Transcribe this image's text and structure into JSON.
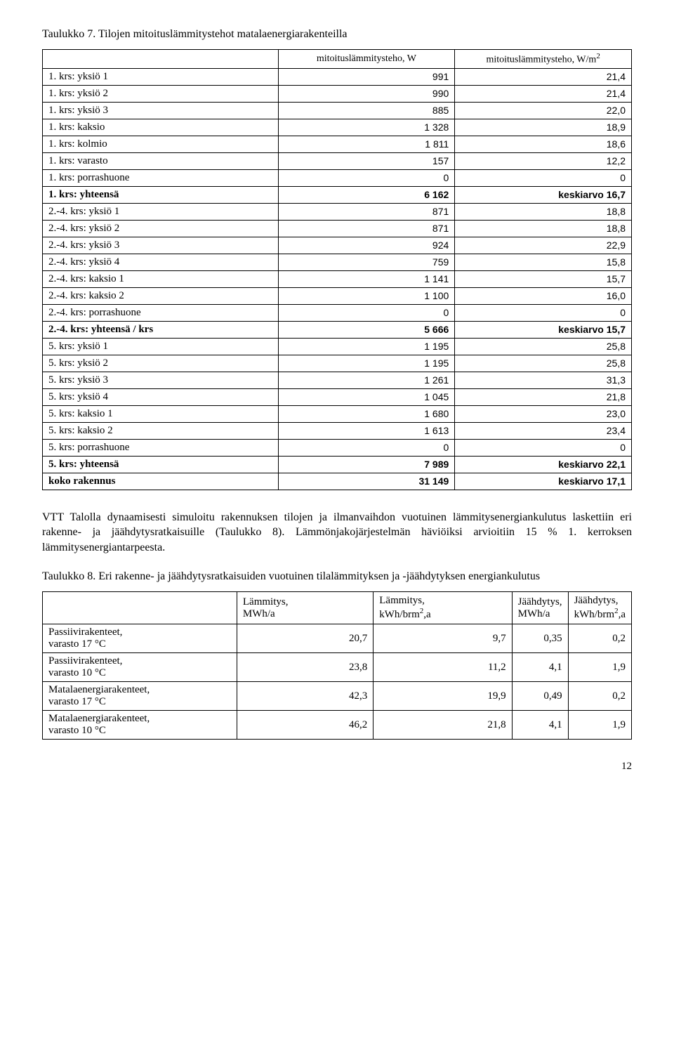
{
  "table7": {
    "caption": "Taulukko 7. Tilojen mitoituslämmitystehot matalaenergiarakenteilla",
    "headers": {
      "blank": "",
      "col1": "mitoituslämmitysteho, W",
      "col2_pre": "mitoituslämmitysteho, W/m",
      "col2_sup": "2"
    },
    "rows": [
      {
        "label": "1. krs: yksiö 1",
        "v1": "991",
        "v2": "21,4",
        "bold": false
      },
      {
        "label": "1. krs: yksiö 2",
        "v1": "990",
        "v2": "21,4",
        "bold": false
      },
      {
        "label": "1. krs: yksiö 3",
        "v1": "885",
        "v2": "22,0",
        "bold": false
      },
      {
        "label": "1. krs: kaksio",
        "v1": "1 328",
        "v2": "18,9",
        "bold": false
      },
      {
        "label": "1. krs: kolmio",
        "v1": "1 811",
        "v2": "18,6",
        "bold": false
      },
      {
        "label": "1. krs: varasto",
        "v1": "157",
        "v2": "12,2",
        "bold": false
      },
      {
        "label": "1. krs: porrashuone",
        "v1": "0",
        "v2": "0",
        "bold": false
      },
      {
        "label": "1. krs: yhteensä",
        "v1": "6 162",
        "v2": "keskiarvo 16,7",
        "bold": true
      },
      {
        "label": "2.-4. krs: yksiö 1",
        "v1": "871",
        "v2": "18,8",
        "bold": false
      },
      {
        "label": "2.-4. krs: yksiö 2",
        "v1": "871",
        "v2": "18,8",
        "bold": false
      },
      {
        "label": "2.-4. krs: yksiö 3",
        "v1": "924",
        "v2": "22,9",
        "bold": false
      },
      {
        "label": "2.-4. krs: yksiö 4",
        "v1": "759",
        "v2": "15,8",
        "bold": false
      },
      {
        "label": "2.-4. krs: kaksio 1",
        "v1": "1 141",
        "v2": "15,7",
        "bold": false
      },
      {
        "label": "2.-4. krs: kaksio 2",
        "v1": "1 100",
        "v2": "16,0",
        "bold": false
      },
      {
        "label": "2.-4. krs: porrashuone",
        "v1": "0",
        "v2": "0",
        "bold": false
      },
      {
        "label": "2.-4. krs: yhteensä / krs",
        "v1": "5 666",
        "v2": "keskiarvo 15,7",
        "bold": true
      },
      {
        "label": "5. krs: yksiö 1",
        "v1": "1 195",
        "v2": "25,8",
        "bold": false
      },
      {
        "label": "5. krs: yksiö 2",
        "v1": "1 195",
        "v2": "25,8",
        "bold": false
      },
      {
        "label": "5. krs: yksiö 3",
        "v1": "1 261",
        "v2": "31,3",
        "bold": false
      },
      {
        "label": "5. krs: yksiö 4",
        "v1": "1 045",
        "v2": "21,8",
        "bold": false
      },
      {
        "label": "5. krs: kaksio 1",
        "v1": "1 680",
        "v2": "23,0",
        "bold": false
      },
      {
        "label": "5. krs: kaksio 2",
        "v1": "1 613",
        "v2": "23,4",
        "bold": false
      },
      {
        "label": "5. krs: porrashuone",
        "v1": "0",
        "v2": "0",
        "bold": false
      },
      {
        "label": "5. krs: yhteensä",
        "v1": "7 989",
        "v2": "keskiarvo 22,1",
        "bold": true
      },
      {
        "label": "koko rakennus",
        "v1": "31 149",
        "v2": "keskiarvo 17,1",
        "bold": true
      }
    ]
  },
  "paragraph1": "VTT Talolla dynaamisesti simuloitu rakennuksen tilojen ja ilmanvaihdon vuotuinen lämmitysenergiankulutus laskettiin eri rakenne- ja jäähdytysratkaisuille (Taulukko 8). Lämmönjakojärjestelmän häviöiksi arvioitiin 15 % 1. kerroksen lämmitysenergiantarpeesta.",
  "table8": {
    "caption": "Taulukko 8. Eri rakenne- ja jäähdytysratkaisuiden vuotuinen tilalämmityksen ja -jäähdytyksen energiankulutus",
    "headers": {
      "blank": "",
      "c1a": "Lämmitys,",
      "c1b": "MWh/a",
      "c2a": "Lämmitys,",
      "c2b_pre": "kWh/brm",
      "c2b_sup": "2",
      "c2b_post": ",a",
      "c3a": "Jäähdytys,",
      "c3b": "MWh/a",
      "c4a": "Jäähdytys,",
      "c4b_pre": "kWh/brm",
      "c4b_sup": "2",
      "c4b_post": ",a"
    },
    "rows": [
      {
        "l1": "Passiivirakenteet,",
        "l2": "varasto 17 °C",
        "v1": "20,7",
        "v2": "9,7",
        "v3": "0,35",
        "v4": "0,2"
      },
      {
        "l1": "Passiivirakenteet,",
        "l2": "varasto 10 °C",
        "v1": "23,8",
        "v2": "11,2",
        "v3": "4,1",
        "v4": "1,9"
      },
      {
        "l1": "Matalaenergiarakenteet,",
        "l2": "varasto 17 °C",
        "v1": "42,3",
        "v2": "19,9",
        "v3": "0,49",
        "v4": "0,2"
      },
      {
        "l1": "Matalaenergiarakenteet,",
        "l2": "varasto 10 °C",
        "v1": "46,2",
        "v2": "21,8",
        "v3": "4,1",
        "v4": "1,9"
      }
    ]
  },
  "page_number": "12"
}
